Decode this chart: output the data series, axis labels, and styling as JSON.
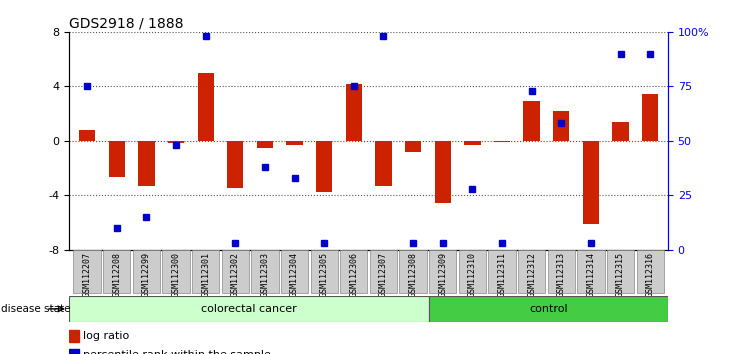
{
  "title": "GDS2918 / 1888",
  "samples": [
    "GSM112207",
    "GSM112208",
    "GSM112299",
    "GSM112300",
    "GSM112301",
    "GSM112302",
    "GSM112303",
    "GSM112304",
    "GSM112305",
    "GSM112306",
    "GSM112307",
    "GSM112308",
    "GSM112309",
    "GSM112310",
    "GSM112311",
    "GSM112312",
    "GSM112313",
    "GSM112314",
    "GSM112315",
    "GSM112316"
  ],
  "log_ratio": [
    0.8,
    -2.7,
    -3.3,
    -0.2,
    5.0,
    -3.5,
    -0.5,
    -0.3,
    -3.8,
    4.2,
    -3.3,
    -0.8,
    -4.6,
    -0.3,
    -0.1,
    2.9,
    2.2,
    -6.1,
    1.4,
    3.4
  ],
  "percentile_rank": [
    75,
    10,
    15,
    48,
    98,
    3,
    38,
    33,
    3,
    75,
    98,
    3,
    3,
    28,
    3,
    73,
    58,
    3,
    90,
    90
  ],
  "colorectal_cancer_count": 12,
  "control_count": 8,
  "bar_color": "#cc2200",
  "dot_color": "#0000cc",
  "dotted_line_color": "#555555",
  "zero_line_color": "#cc2200",
  "ylim": [
    -8,
    8
  ],
  "yticks_left": [
    -8,
    -4,
    0,
    4,
    8
  ],
  "yticks_right": [
    0,
    25,
    50,
    75,
    100
  ],
  "colorectal_color": "#ccffcc",
  "control_color": "#44cc44",
  "bg_color": "#ffffff",
  "bar_width": 0.55
}
